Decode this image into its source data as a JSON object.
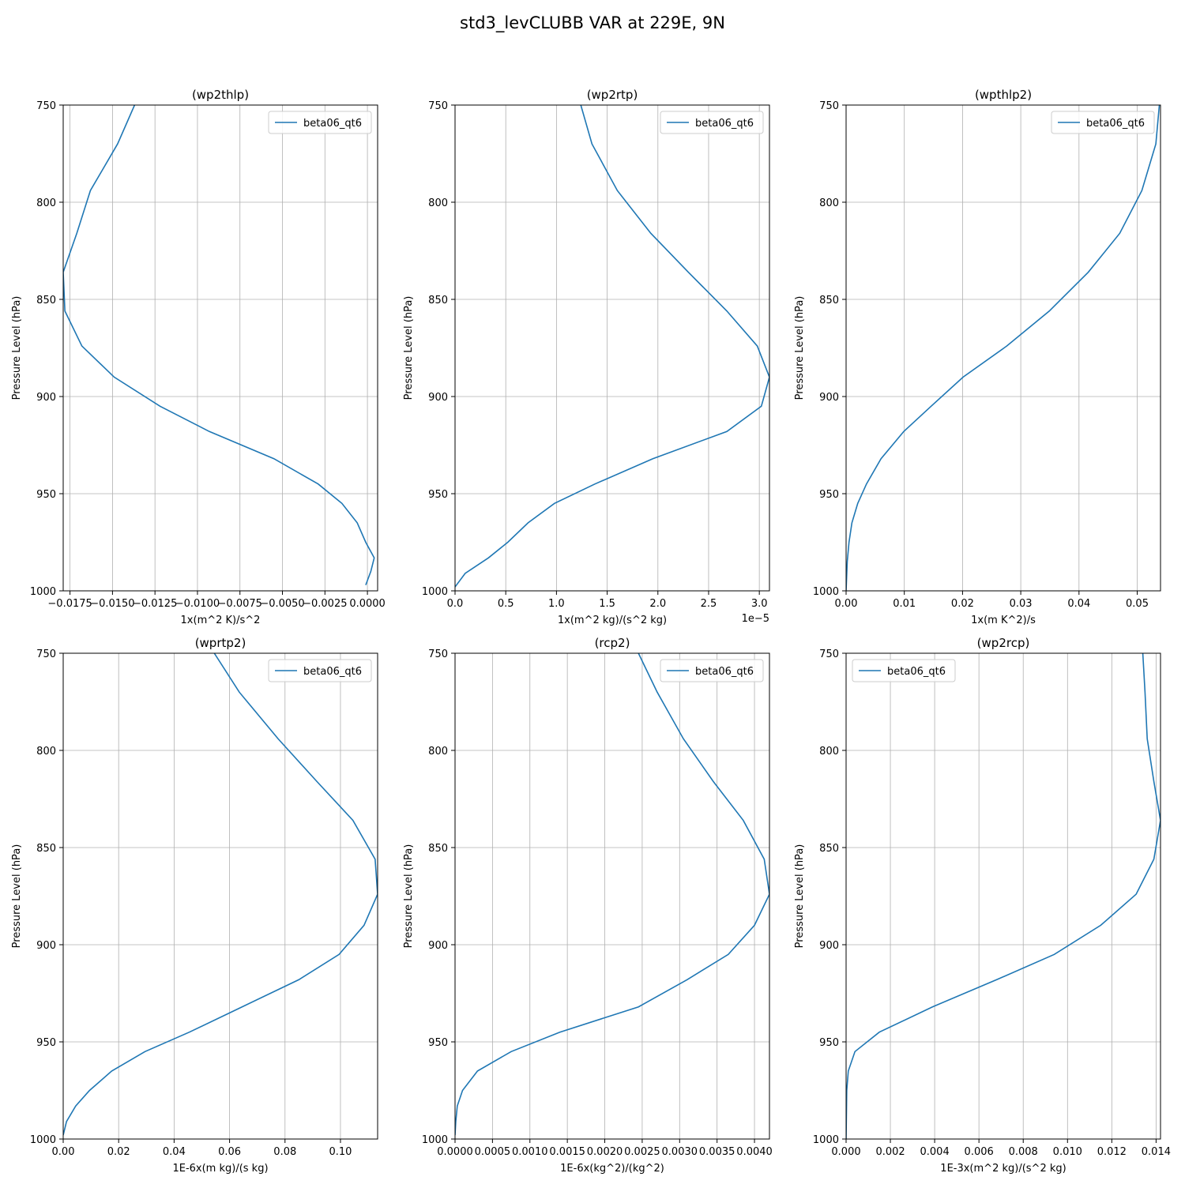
{
  "figure": {
    "title": "std3_levCLUBB VAR at 229E, 9N"
  },
  "colors": {
    "line": "#1f77b4",
    "grid": "#b0b0b0",
    "axis": "#000000"
  },
  "chart_data": [
    {
      "type": "line",
      "title": "(wp2thlp)",
      "xlabel": "1x(m^2 K)/s^2",
      "ylabel": "Pressure Level (hPa)",
      "xlim": [
        -0.0179,
        0.0006
      ],
      "ylim": [
        1000,
        750
      ],
      "y_inverted": true,
      "x_ticks": [
        -0.0175,
        -0.015,
        -0.0125,
        -0.01,
        -0.0075,
        -0.005,
        -0.0025,
        0.0
      ],
      "x_tick_labels": [
        "−0.0175",
        "−0.0150",
        "−0.0125",
        "−0.0100",
        "−0.0075",
        "−0.0050",
        "−0.0025",
        "0.0000"
      ],
      "y_ticks": [
        750,
        800,
        850,
        900,
        950,
        1000
      ],
      "y_tick_labels": [
        "750",
        "800",
        "850",
        "900",
        "950",
        "1000"
      ],
      "offset_text": "",
      "grid": true,
      "legend": {
        "position": "top-right"
      },
      "series": [
        {
          "name": "beta06_qt6",
          "x": [
            -0.0137,
            -0.0147,
            -0.0163,
            -0.0171,
            -0.0179,
            -0.0178,
            -0.0168,
            -0.0149,
            -0.0122,
            -0.0093,
            -0.0055,
            -0.0029,
            -0.0015,
            -0.0006,
            -0.0001,
            0.0004,
            0.0002,
            -0.0001
          ],
          "y": [
            750,
            770,
            794,
            816,
            836,
            856,
            874,
            890,
            905,
            918,
            932,
            945,
            955,
            965,
            975,
            983,
            990,
            997
          ]
        }
      ]
    },
    {
      "type": "line",
      "title": "(wp2rtp)",
      "xlabel": "1x(m^2 kg)/(s^2 kg)",
      "ylabel": "Pressure Level (hPa)",
      "xlim": [
        0,
        3.1
      ],
      "ylim": [
        1000,
        750
      ],
      "y_inverted": true,
      "x_ticks": [
        0,
        0.5,
        1.0,
        1.5,
        2.0,
        2.5,
        3.0
      ],
      "x_tick_labels": [
        "0.0",
        "0.5",
        "1.0",
        "1.5",
        "2.0",
        "2.5",
        "3.0"
      ],
      "y_ticks": [
        750,
        800,
        850,
        900,
        950,
        1000
      ],
      "y_tick_labels": [
        "750",
        "800",
        "850",
        "900",
        "950",
        "1000"
      ],
      "offset_text": "1e−5",
      "grid": true,
      "legend": {
        "position": "top-right"
      },
      "series": [
        {
          "name": "beta06_qt6",
          "x": [
            1.24,
            1.35,
            1.6,
            1.93,
            2.3,
            2.68,
            2.98,
            3.1,
            3.02,
            2.68,
            1.95,
            1.38,
            0.98,
            0.72,
            0.52,
            0.33,
            0.1,
            0.0
          ],
          "y": [
            750,
            770,
            794,
            816,
            836,
            856,
            874,
            890,
            905,
            918,
            932,
            945,
            955,
            965,
            975,
            983,
            991,
            998
          ]
        }
      ]
    },
    {
      "type": "line",
      "title": "(wpthlp2)",
      "xlabel": "1x(m K^2)/s",
      "ylabel": "Pressure Level (hPa)",
      "xlim": [
        0,
        0.054
      ],
      "ylim": [
        1000,
        750
      ],
      "y_inverted": true,
      "x_ticks": [
        0.0,
        0.01,
        0.02,
        0.03,
        0.04,
        0.05
      ],
      "x_tick_labels": [
        "0.00",
        "0.01",
        "0.02",
        "0.03",
        "0.04",
        "0.05"
      ],
      "y_ticks": [
        750,
        800,
        850,
        900,
        950,
        1000
      ],
      "y_tick_labels": [
        "750",
        "800",
        "850",
        "900",
        "950",
        "1000"
      ],
      "offset_text": "",
      "grid": true,
      "legend": {
        "position": "top-right"
      },
      "series": [
        {
          "name": "beta06_qt6",
          "x": [
            0.0538,
            0.0532,
            0.0508,
            0.047,
            0.0416,
            0.0349,
            0.0276,
            0.0201,
            0.0146,
            0.0099,
            0.006,
            0.0035,
            0.002,
            0.001,
            0.0005,
            0.0002,
            0.0
          ],
          "y": [
            750,
            770,
            794,
            816,
            836,
            856,
            874,
            890,
            905,
            918,
            932,
            945,
            955,
            965,
            975,
            985,
            1000
          ]
        }
      ]
    },
    {
      "type": "line",
      "title": "(wprtp2)",
      "xlabel": "1E-6x(m kg)/(s kg)",
      "ylabel": "Pressure Level (hPa)",
      "xlim": [
        0,
        0.1134
      ],
      "ylim": [
        1000,
        750
      ],
      "y_inverted": true,
      "x_ticks": [
        0.0,
        0.02,
        0.04,
        0.06,
        0.08,
        0.1
      ],
      "x_tick_labels": [
        "0.00",
        "0.02",
        "0.04",
        "0.06",
        "0.08",
        "0.10"
      ],
      "y_ticks": [
        750,
        800,
        850,
        900,
        950,
        1000
      ],
      "y_tick_labels": [
        "750",
        "800",
        "850",
        "900",
        "950",
        "1000"
      ],
      "offset_text": "",
      "grid": true,
      "legend": {
        "position": "top-right"
      },
      "series": [
        {
          "name": "beta06_qt6",
          "x": [
            0.0545,
            0.0635,
            0.0775,
            0.0915,
            0.1045,
            0.1125,
            0.1134,
            0.1085,
            0.0995,
            0.085,
            0.0645,
            0.0455,
            0.0295,
            0.0175,
            0.0095,
            0.0045,
            0.0012,
            0.0
          ],
          "y": [
            750,
            770,
            794,
            816,
            836,
            856,
            874,
            890,
            905,
            918,
            932,
            945,
            955,
            965,
            975,
            983,
            991,
            998
          ]
        }
      ]
    },
    {
      "type": "line",
      "title": "(rcp2)",
      "xlabel": "1E-6x(kg^2)/(kg^2)",
      "ylabel": "Pressure Level (hPa)",
      "xlim": [
        0,
        0.0042
      ],
      "ylim": [
        1000,
        750
      ],
      "y_inverted": true,
      "x_ticks": [
        0.0,
        0.0005,
        0.001,
        0.0015,
        0.002,
        0.0025,
        0.003,
        0.0035,
        0.004
      ],
      "x_tick_labels": [
        "0.0000",
        "0.0005",
        "0.0010",
        "0.0015",
        "0.0020",
        "0.0025",
        "0.0030",
        "0.0035",
        "0.0040"
      ],
      "y_ticks": [
        750,
        800,
        850,
        900,
        950,
        1000
      ],
      "y_tick_labels": [
        "750",
        "800",
        "850",
        "900",
        "950",
        "1000"
      ],
      "offset_text": "",
      "grid": true,
      "legend": {
        "position": "top-right"
      },
      "series": [
        {
          "name": "beta06_qt6",
          "x": [
            0.00245,
            0.0027,
            0.00305,
            0.00345,
            0.00385,
            0.00413,
            0.0042,
            0.004,
            0.00365,
            0.0031,
            0.00245,
            0.0014,
            0.00075,
            0.0003,
            0.0001,
            3e-05,
            1e-05,
            0.0
          ],
          "y": [
            750,
            770,
            794,
            816,
            836,
            856,
            874,
            890,
            905,
            918,
            932,
            945,
            955,
            965,
            975,
            983,
            991,
            998
          ]
        }
      ]
    },
    {
      "type": "line",
      "title": "(wp2rcp)",
      "xlabel": "1E-3x(m^2 kg)/(s^2 kg)",
      "ylabel": "Pressure Level (hPa)",
      "xlim": [
        0,
        0.0142
      ],
      "ylim": [
        1000,
        750
      ],
      "y_inverted": true,
      "x_ticks": [
        0.0,
        0.002,
        0.004,
        0.006,
        0.008,
        0.01,
        0.012,
        0.014
      ],
      "x_tick_labels": [
        "0.000",
        "0.002",
        "0.004",
        "0.006",
        "0.008",
        "0.010",
        "0.012",
        "0.014"
      ],
      "y_ticks": [
        750,
        800,
        850,
        900,
        950,
        1000
      ],
      "y_tick_labels": [
        "750",
        "800",
        "850",
        "900",
        "950",
        "1000"
      ],
      "offset_text": "",
      "grid": true,
      "legend": {
        "position": "top-left"
      },
      "series": [
        {
          "name": "beta06_qt6",
          "x": [
            0.0134,
            0.0135,
            0.0136,
            0.0139,
            0.0142,
            0.0139,
            0.0131,
            0.0115,
            0.0094,
            0.0068,
            0.0039,
            0.0015,
            0.0004,
            0.0001,
            3e-05,
            0.0
          ],
          "y": [
            750,
            770,
            794,
            816,
            836,
            856,
            874,
            890,
            905,
            918,
            932,
            945,
            955,
            965,
            975,
            1000
          ]
        }
      ]
    }
  ]
}
